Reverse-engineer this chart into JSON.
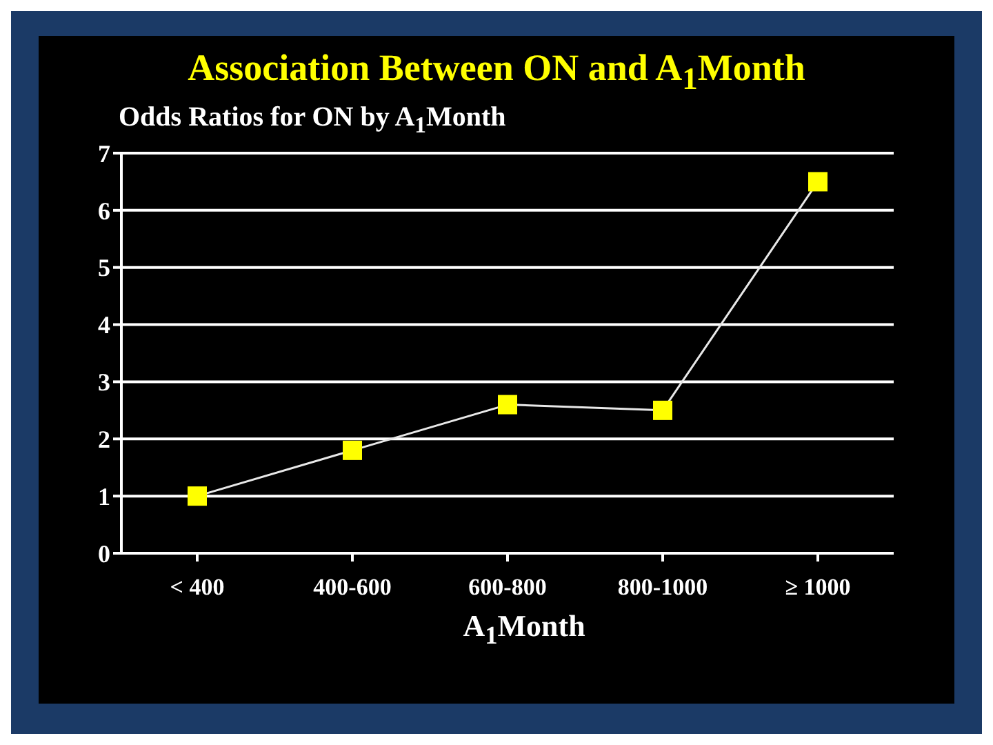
{
  "chart_data": {
    "type": "line",
    "title": "Association Between ON and A$_{1}$Month",
    "subtitle": "Odds Ratios for ON by A$_{1}$Month",
    "xlabel": "A$_{1}$Month",
    "categories": [
      "< 400",
      "400-600",
      "600-800",
      "800-1000",
      "≥ 1000"
    ],
    "series": [
      {
        "color": "#ffff00",
        "values": [
          1.0,
          1.8,
          2.6,
          2.5,
          6.5
        ]
      }
    ],
    "ylim": [
      0,
      7
    ],
    "yticks": [
      0,
      1,
      2,
      3,
      4,
      5,
      6,
      7
    ],
    "grid": "y",
    "marker": "square",
    "line_style": "solid",
    "legend": false
  }
}
